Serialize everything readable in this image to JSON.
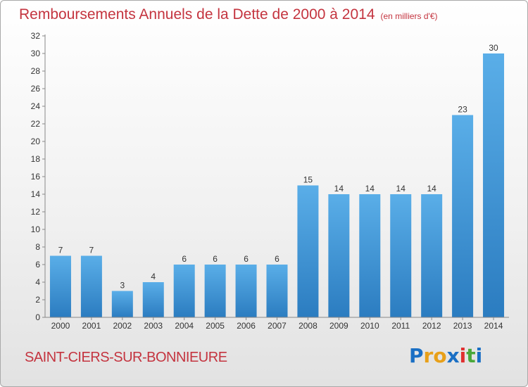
{
  "page": {
    "title": "Remboursements Annuels de la Dette de 2000 à 2014",
    "subtitle": "(en milliers d'€)",
    "location": "SAINT-CIERS-SUR-BONNIEURE",
    "logo": {
      "text": "Proxiti",
      "letters": [
        "P",
        "r",
        "o",
        "x",
        "i",
        "t",
        "i"
      ]
    }
  },
  "colors": {
    "title": "#c4343f",
    "bar_top": "#5aaee8",
    "bar_bottom": "#2b7cc0",
    "logo_letters": [
      "#1a6fc4",
      "#e8a019",
      "#e8a019",
      "#1a6fc4",
      "#e03030",
      "#4aa83a",
      "#1a6fc4"
    ]
  },
  "chart_data": {
    "type": "bar",
    "title": "Remboursements Annuels de la Dette de 2000 à 2014",
    "subtitle": "(en milliers d'€)",
    "categories": [
      "2000",
      "2001",
      "2002",
      "2003",
      "2004",
      "2005",
      "2006",
      "2007",
      "2008",
      "2009",
      "2010",
      "2011",
      "2012",
      "2013",
      "2014"
    ],
    "values": [
      7,
      7,
      3,
      4,
      6,
      6,
      6,
      6,
      15,
      14,
      14,
      14,
      14,
      23,
      30
    ],
    "ylim": [
      0,
      32
    ],
    "yticks": [
      0,
      2,
      4,
      6,
      8,
      10,
      12,
      14,
      16,
      18,
      20,
      22,
      24,
      26,
      28,
      30,
      32
    ],
    "xlabel": "",
    "ylabel": "",
    "grid": false,
    "data_labels": true
  }
}
